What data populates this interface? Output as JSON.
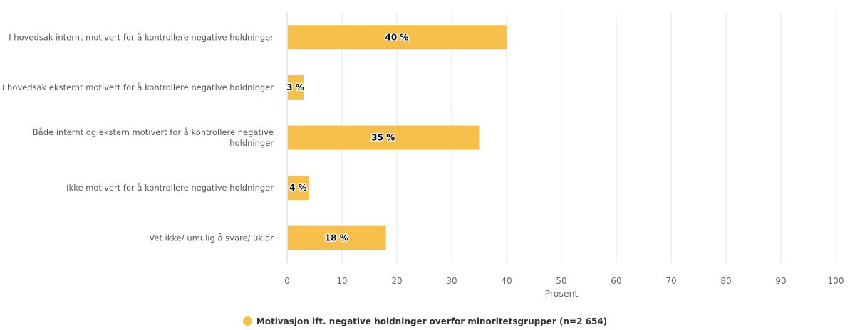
{
  "chart_data": {
    "type": "bar",
    "orientation": "horizontal",
    "categories": [
      "I hovedsak internt motivert for å kontrollere negative holdninger",
      "I hovedsak eksternt motivert for å kontrollere negative holdninger",
      "Både internt og ekstern motivert for å kontrollere negative holdninger",
      "Ikke motivert for å kontrollere negative holdninger",
      "Vet ikke/ umulig å svare/ uklar"
    ],
    "series": [
      {
        "name": "Motivasjon ift. negative holdninger overfor minoritetsgrupper (n=2 654)",
        "values": [
          40,
          3,
          35,
          4,
          18
        ],
        "labels": [
          "40 %",
          "3 %",
          "35 %",
          "4 %",
          "18 %"
        ],
        "color": "#F7C04A"
      }
    ],
    "xlabel": "Prosent",
    "xlim": [
      0,
      100
    ],
    "xticks": [
      0,
      10,
      20,
      30,
      40,
      50,
      60,
      70,
      80,
      90,
      100
    ],
    "grid": true,
    "legend_position": "bottom"
  }
}
